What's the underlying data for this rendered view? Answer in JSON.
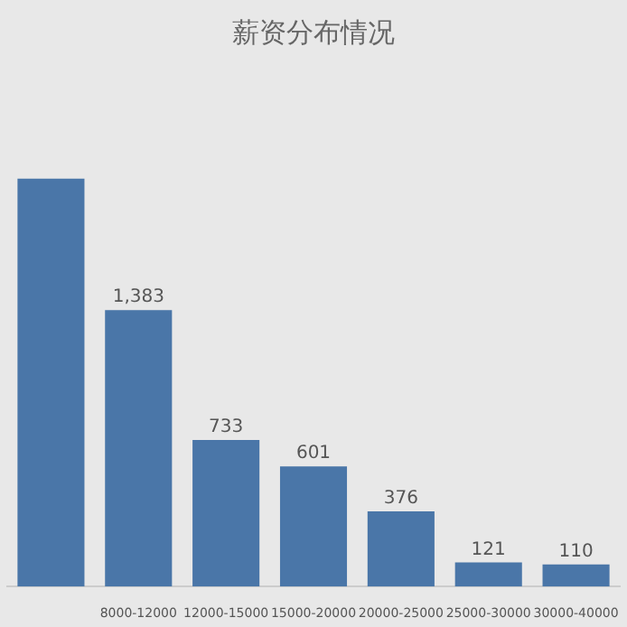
{
  "chart_data": {
    "type": "bar",
    "title": "薪资分布情况",
    "categories": [
      null,
      "8000-12000",
      "12000-15000",
      "15000-20000",
      "20000-25000",
      "25000-30000",
      "30000-40000"
    ],
    "values": [
      2040,
      1383,
      733,
      601,
      376,
      121,
      110
    ],
    "value_labels": [
      null,
      "1,383",
      "733",
      "601",
      "376",
      "121",
      "110"
    ],
    "color": "#4a76a8",
    "grid": false,
    "legend": false
  }
}
